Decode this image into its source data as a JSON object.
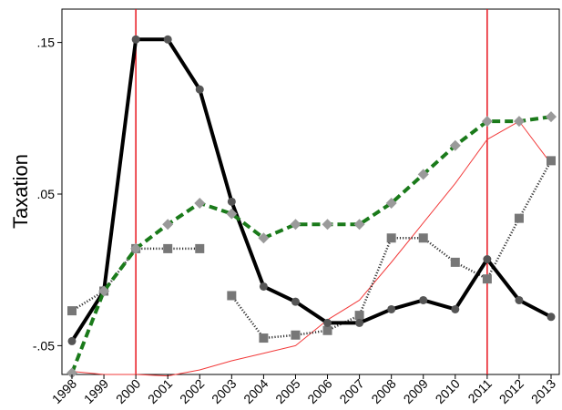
{
  "chart_data": {
    "type": "line",
    "title": "",
    "xlabel": "",
    "ylabel": "Taxation",
    "x": [
      1998,
      1999,
      2000,
      2001,
      2002,
      2003,
      2004,
      2005,
      2006,
      2007,
      2008,
      2009,
      2010,
      2011,
      2012,
      2013
    ],
    "xlim": [
      1998,
      2013
    ],
    "ylim": [
      -0.069,
      0.172
    ],
    "yticks": [
      {
        "value": -0.05,
        "label": "-.05"
      },
      {
        "value": 0.05,
        "label": ".05"
      },
      {
        "value": 0.15,
        "label": ".15"
      }
    ],
    "xticks": [
      {
        "value": 1998,
        "label": "1998"
      },
      {
        "value": 1999,
        "label": "1999"
      },
      {
        "value": 2000,
        "label": "2000"
      },
      {
        "value": 2001,
        "label": "2001"
      },
      {
        "value": 2002,
        "label": "2002"
      },
      {
        "value": 2003,
        "label": "2003"
      },
      {
        "value": 2004,
        "label": "2004"
      },
      {
        "value": 2005,
        "label": "2005"
      },
      {
        "value": 2006,
        "label": "2006"
      },
      {
        "value": 2007,
        "label": "2007"
      },
      {
        "value": 2008,
        "label": "2008"
      },
      {
        "value": 2009,
        "label": "2009"
      },
      {
        "value": 2010,
        "label": "2010"
      },
      {
        "value": 2011,
        "label": "2011"
      },
      {
        "value": 2012,
        "label": "2012"
      },
      {
        "value": 2013,
        "label": "2013"
      }
    ],
    "grid": false,
    "legend": "none",
    "vertical_lines": [
      {
        "x": 2000,
        "color": "#e8141e"
      },
      {
        "x": 2011,
        "color": "#e8141e"
      }
    ],
    "series": [
      {
        "style": "thin-solid",
        "color": "#f23a3a",
        "marker": "none",
        "values": [
          -0.067,
          -0.069,
          -0.069,
          -0.07,
          -0.066,
          -0.06,
          -0.055,
          -0.05,
          -0.033,
          -0.02,
          0.005,
          0.031,
          0.057,
          0.086,
          0.098,
          0.07
        ]
      },
      {
        "style": "dotted-segments",
        "color": "#333333",
        "marker": "square",
        "marker_color": "#777777",
        "segments": [
          [
            0,
            4
          ],
          [
            5,
            15
          ]
        ],
        "values": [
          -0.027,
          -0.014,
          0.014,
          0.014,
          0.014,
          -0.017,
          -0.045,
          -0.043,
          -0.04,
          -0.03,
          0.021,
          0.021,
          0.005,
          -0.006,
          0.034,
          0.072
        ]
      },
      {
        "style": "thick-solid",
        "color": "#000000",
        "marker": "circle",
        "marker_color": "#555555",
        "values": [
          -0.047,
          -0.014,
          0.152,
          0.152,
          0.119,
          0.045,
          -0.011,
          -0.021,
          -0.035,
          -0.035,
          -0.026,
          -0.02,
          -0.026,
          0.007,
          -0.02,
          -0.031
        ]
      },
      {
        "style": "thick-dashed",
        "color": "#1a7a1a",
        "marker": "diamond",
        "marker_color": "#9a9a9a",
        "values": [
          -0.068,
          -0.014,
          0.014,
          0.03,
          0.044,
          0.037,
          0.021,
          0.03,
          0.03,
          0.03,
          0.044,
          0.063,
          0.082,
          0.098,
          0.098,
          0.101
        ]
      }
    ]
  }
}
